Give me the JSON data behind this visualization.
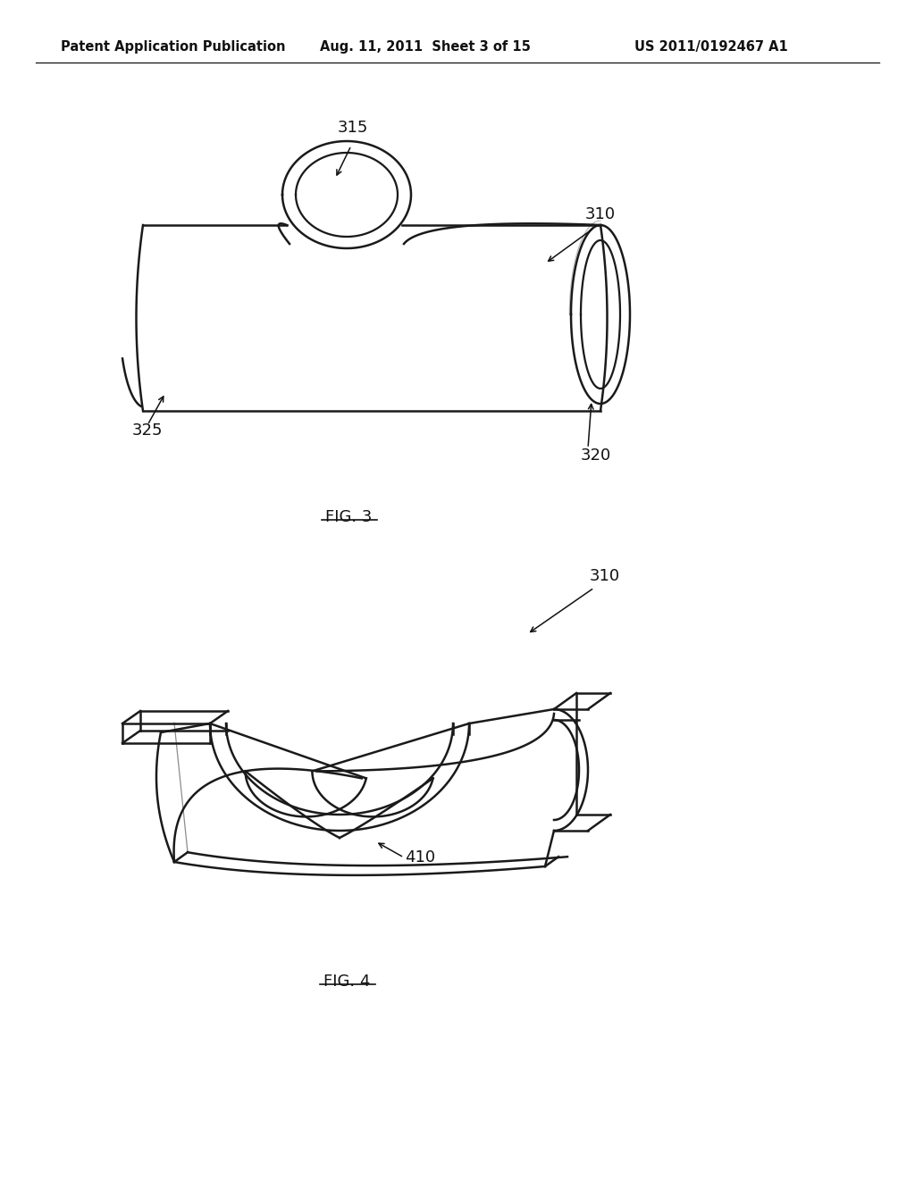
{
  "background_color": "#ffffff",
  "header_left": "Patent Application Publication",
  "header_center": "Aug. 11, 2011  Sheet 3 of 15",
  "header_right": "US 2011/0192467 A1",
  "header_fontsize": 10.5,
  "fig3_caption": "FIG. 3",
  "fig4_caption": "FIG. 4",
  "line_color": "#1a1a1a",
  "line_width": 1.8
}
